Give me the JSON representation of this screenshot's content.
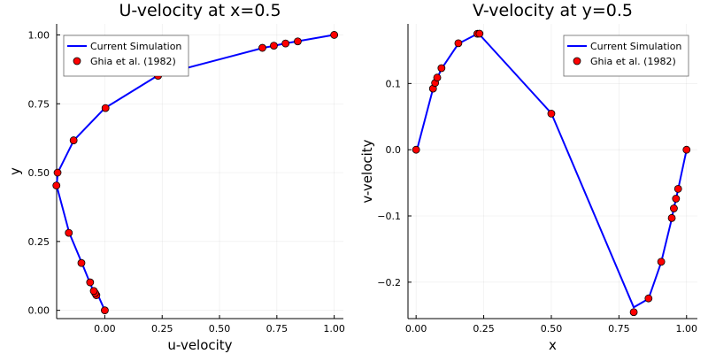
{
  "chart_data": [
    {
      "type": "line",
      "title": "U-velocity at x=0.5",
      "xlabel": "u-velocity",
      "ylabel": "y",
      "xlim": [
        -0.21,
        1.04
      ],
      "ylim": [
        -0.03,
        1.04
      ],
      "xticks": [
        0.0,
        0.25,
        0.5,
        0.75,
        1.0
      ],
      "xtick_labels": [
        "0.00",
        "0.25",
        "0.50",
        "0.75",
        "1.00"
      ],
      "yticks": [
        0.0,
        0.25,
        0.5,
        0.75,
        1.0
      ],
      "ytick_labels": [
        "0.00",
        "0.25",
        "0.50",
        "0.75",
        "1.00"
      ],
      "grid": true,
      "legend_position": "top-right",
      "series": [
        {
          "name": "Current Simulation",
          "kind": "line",
          "color": "#0000ff",
          "x": [
            0.0,
            -0.03,
            -0.05,
            -0.065,
            -0.1,
            -0.155,
            -0.21,
            -0.205,
            -0.135,
            0.0,
            0.23,
            0.69,
            0.74,
            0.785,
            0.84,
            1.0
          ],
          "y": [
            0.0,
            0.055,
            0.07,
            0.1,
            0.172,
            0.281,
            0.453,
            0.5,
            0.617,
            0.734,
            0.852,
            0.953,
            0.961,
            0.969,
            0.977,
            1.0
          ]
        },
        {
          "name": "Ghia et al. (1982)",
          "kind": "scatter",
          "color": "#ff0000",
          "x": [
            0.0,
            -0.037,
            -0.042,
            -0.048,
            -0.064,
            -0.102,
            -0.157,
            -0.211,
            -0.206,
            -0.136,
            0.003,
            0.232,
            0.687,
            0.737,
            0.788,
            0.841,
            1.0
          ],
          "y": [
            0.0,
            0.055,
            0.0625,
            0.0703,
            0.1016,
            0.1719,
            0.2813,
            0.4531,
            0.5,
            0.6172,
            0.7344,
            0.8516,
            0.9531,
            0.9609,
            0.9688,
            0.9766,
            1.0
          ]
        }
      ]
    },
    {
      "type": "line",
      "title": "V-velocity at y=0.5",
      "xlabel": "x",
      "ylabel": "v-velocity",
      "xlim": [
        -0.03,
        1.04
      ],
      "ylim": [
        -0.255,
        0.19
      ],
      "xticks": [
        0.0,
        0.25,
        0.5,
        0.75,
        1.0
      ],
      "xtick_labels": [
        "0.00",
        "0.25",
        "0.50",
        "0.75",
        "1.00"
      ],
      "yticks": [
        -0.2,
        -0.1,
        0.0,
        0.1
      ],
      "ytick_labels": [
        "−0.2",
        "−0.1",
        "0.0",
        "0.1"
      ],
      "grid": true,
      "legend_position": "top-right",
      "series": [
        {
          "name": "Current Simulation",
          "kind": "line",
          "color": "#0000ff",
          "x": [
            0.0,
            0.0625,
            0.0703,
            0.0781,
            0.0938,
            0.1563,
            0.2266,
            0.2344,
            0.5,
            0.8047,
            0.8594,
            0.9063,
            0.9453,
            0.9531,
            0.9609,
            0.9688,
            1.0
          ],
          "y": [
            -0.005,
            0.092,
            0.1,
            0.108,
            0.122,
            0.16,
            0.175,
            0.174,
            0.055,
            -0.238,
            -0.225,
            -0.17,
            -0.104,
            -0.088,
            -0.075,
            -0.06,
            0.0
          ]
        },
        {
          "name": "Ghia et al. (1982)",
          "kind": "scatter",
          "color": "#ff0000",
          "x": [
            0.0,
            0.0625,
            0.0703,
            0.0781,
            0.0938,
            0.1563,
            0.2266,
            0.2344,
            0.5,
            0.8047,
            0.8594,
            0.9063,
            0.9453,
            0.9531,
            0.9609,
            0.9688,
            1.0
          ],
          "y": [
            0.0,
            0.0923,
            0.1009,
            0.1089,
            0.1232,
            0.1608,
            0.1751,
            0.1753,
            0.0545,
            -0.2453,
            -0.2245,
            -0.1691,
            -0.1031,
            -0.0886,
            -0.0739,
            -0.0591,
            0.0
          ]
        }
      ]
    }
  ]
}
